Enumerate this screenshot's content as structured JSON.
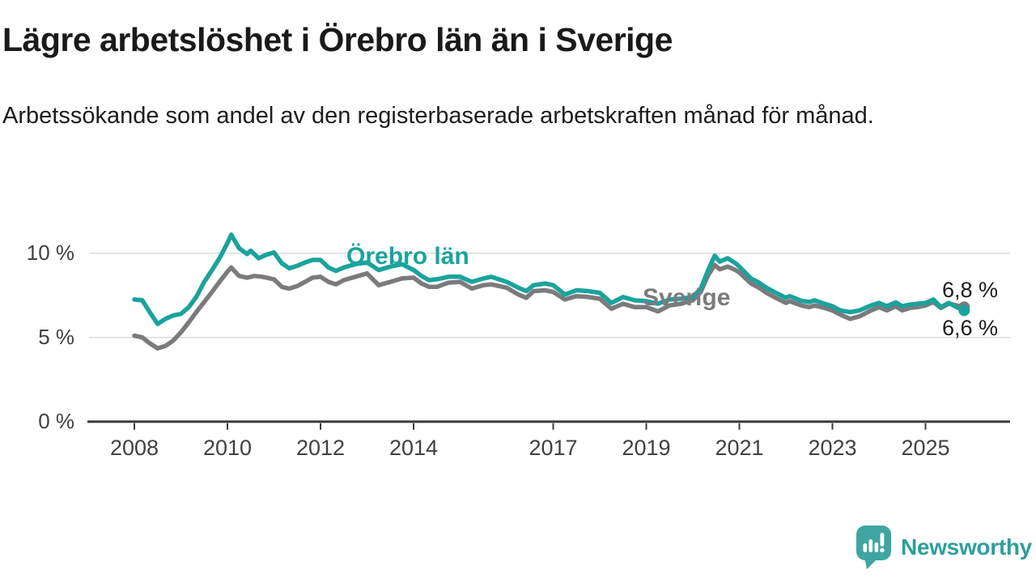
{
  "title": "Lägre arbetslöshet i Örebro län än i Sverige",
  "subtitle": "Arbetssökande som andel av den registerbaserade arbetskraften månad för månad.",
  "branding": {
    "logo_text": "Newsworthy",
    "logo_color": "#3FA5A0"
  },
  "chart_data": {
    "type": "line",
    "title": "Lägre arbetslöshet i Örebro län än i Sverige",
    "subtitle": "Arbetssökande som andel av den registerbaserade arbetskraften månad för månad.",
    "grid": "horizontal",
    "x_axis": {
      "ticks": [
        2008,
        2010,
        2012,
        2014,
        2017,
        2019,
        2021,
        2023,
        2025
      ],
      "range": [
        2008,
        2025.9
      ]
    },
    "y_axis": {
      "ticks": [
        0,
        5,
        10
      ],
      "tick_labels": [
        "0 %",
        "5 %",
        "10 %"
      ],
      "unit": "%",
      "range": [
        0,
        12
      ]
    },
    "colors": {
      "grid": "#dcdcdc",
      "axis": "#3c3c3c",
      "tick_text": "#404040"
    },
    "series": [
      {
        "name": "Sverige",
        "color": "#7b7b7e",
        "end_label": "6,8 %",
        "end_value": 6.8,
        "points": [
          [
            2008.0,
            5.1
          ],
          [
            2008.17,
            5.0
          ],
          [
            2008.33,
            4.65
          ],
          [
            2008.5,
            4.35
          ],
          [
            2008.67,
            4.5
          ],
          [
            2008.83,
            4.8
          ],
          [
            2009.0,
            5.3
          ],
          [
            2009.17,
            5.9
          ],
          [
            2009.33,
            6.5
          ],
          [
            2009.5,
            7.1
          ],
          [
            2009.67,
            7.7
          ],
          [
            2009.83,
            8.3
          ],
          [
            2010.0,
            8.9
          ],
          [
            2010.08,
            9.15
          ],
          [
            2010.25,
            8.65
          ],
          [
            2010.42,
            8.55
          ],
          [
            2010.58,
            8.65
          ],
          [
            2010.75,
            8.6
          ],
          [
            2010.92,
            8.5
          ],
          [
            2011.0,
            8.45
          ],
          [
            2011.17,
            8.0
          ],
          [
            2011.33,
            7.9
          ],
          [
            2011.5,
            8.05
          ],
          [
            2011.67,
            8.3
          ],
          [
            2011.83,
            8.55
          ],
          [
            2012.0,
            8.6
          ],
          [
            2012.17,
            8.3
          ],
          [
            2012.33,
            8.15
          ],
          [
            2012.5,
            8.4
          ],
          [
            2012.75,
            8.6
          ],
          [
            2013.0,
            8.8
          ],
          [
            2013.25,
            8.1
          ],
          [
            2013.5,
            8.3
          ],
          [
            2013.75,
            8.5
          ],
          [
            2014.0,
            8.55
          ],
          [
            2014.17,
            8.2
          ],
          [
            2014.33,
            8.0
          ],
          [
            2014.5,
            8.0
          ],
          [
            2014.75,
            8.25
          ],
          [
            2015.0,
            8.3
          ],
          [
            2015.25,
            7.9
          ],
          [
            2015.5,
            8.1
          ],
          [
            2015.67,
            8.15
          ],
          [
            2016.0,
            7.95
          ],
          [
            2016.25,
            7.55
          ],
          [
            2016.42,
            7.35
          ],
          [
            2016.58,
            7.75
          ],
          [
            2016.83,
            7.8
          ],
          [
            2017.0,
            7.7
          ],
          [
            2017.25,
            7.25
          ],
          [
            2017.5,
            7.45
          ],
          [
            2017.75,
            7.4
          ],
          [
            2018.0,
            7.3
          ],
          [
            2018.25,
            6.7
          ],
          [
            2018.5,
            7.0
          ],
          [
            2018.75,
            6.8
          ],
          [
            2019.0,
            6.8
          ],
          [
            2019.25,
            6.55
          ],
          [
            2019.5,
            6.9
          ],
          [
            2019.75,
            7.0
          ],
          [
            2020.0,
            7.2
          ],
          [
            2020.17,
            7.7
          ],
          [
            2020.33,
            8.7
          ],
          [
            2020.47,
            9.3
          ],
          [
            2020.58,
            9.05
          ],
          [
            2020.75,
            9.2
          ],
          [
            2020.92,
            9.0
          ],
          [
            2021.0,
            8.85
          ],
          [
            2021.25,
            8.2
          ],
          [
            2021.42,
            7.95
          ],
          [
            2021.58,
            7.65
          ],
          [
            2021.75,
            7.4
          ],
          [
            2022.0,
            7.05
          ],
          [
            2022.08,
            7.15
          ],
          [
            2022.33,
            6.9
          ],
          [
            2022.5,
            6.8
          ],
          [
            2022.62,
            6.9
          ],
          [
            2022.83,
            6.75
          ],
          [
            2023.0,
            6.6
          ],
          [
            2023.17,
            6.35
          ],
          [
            2023.38,
            6.1
          ],
          [
            2023.58,
            6.25
          ],
          [
            2023.83,
            6.6
          ],
          [
            2024.0,
            6.8
          ],
          [
            2024.17,
            6.6
          ],
          [
            2024.36,
            6.85
          ],
          [
            2024.5,
            6.6
          ],
          [
            2024.67,
            6.75
          ],
          [
            2024.83,
            6.8
          ],
          [
            2025.0,
            6.9
          ],
          [
            2025.17,
            7.1
          ],
          [
            2025.33,
            6.75
          ],
          [
            2025.5,
            7.0
          ],
          [
            2025.67,
            6.9
          ],
          [
            2025.83,
            6.8
          ]
        ]
      },
      {
        "name": "Örebro län",
        "color": "#1aa39c",
        "end_label": "6,6 %",
        "end_value": 6.6,
        "points": [
          [
            2008.0,
            7.25
          ],
          [
            2008.17,
            7.2
          ],
          [
            2008.33,
            6.5
          ],
          [
            2008.5,
            5.8
          ],
          [
            2008.67,
            6.1
          ],
          [
            2008.83,
            6.3
          ],
          [
            2009.0,
            6.4
          ],
          [
            2009.17,
            6.8
          ],
          [
            2009.33,
            7.4
          ],
          [
            2009.5,
            8.3
          ],
          [
            2009.67,
            9.0
          ],
          [
            2009.83,
            9.7
          ],
          [
            2010.0,
            10.6
          ],
          [
            2010.08,
            11.1
          ],
          [
            2010.25,
            10.3
          ],
          [
            2010.42,
            9.95
          ],
          [
            2010.5,
            10.15
          ],
          [
            2010.67,
            9.7
          ],
          [
            2010.83,
            9.9
          ],
          [
            2011.0,
            10.05
          ],
          [
            2011.17,
            9.4
          ],
          [
            2011.33,
            9.1
          ],
          [
            2011.5,
            9.25
          ],
          [
            2011.67,
            9.45
          ],
          [
            2011.83,
            9.6
          ],
          [
            2012.0,
            9.6
          ],
          [
            2012.17,
            9.15
          ],
          [
            2012.33,
            8.95
          ],
          [
            2012.5,
            9.15
          ],
          [
            2012.75,
            9.35
          ],
          [
            2013.0,
            9.45
          ],
          [
            2013.25,
            9.0
          ],
          [
            2013.5,
            9.2
          ],
          [
            2013.75,
            9.35
          ],
          [
            2014.0,
            9.0
          ],
          [
            2014.17,
            8.65
          ],
          [
            2014.33,
            8.4
          ],
          [
            2014.5,
            8.45
          ],
          [
            2014.75,
            8.6
          ],
          [
            2015.0,
            8.6
          ],
          [
            2015.25,
            8.3
          ],
          [
            2015.5,
            8.5
          ],
          [
            2015.67,
            8.6
          ],
          [
            2016.0,
            8.3
          ],
          [
            2016.25,
            7.95
          ],
          [
            2016.42,
            7.75
          ],
          [
            2016.58,
            8.1
          ],
          [
            2016.83,
            8.2
          ],
          [
            2017.0,
            8.1
          ],
          [
            2017.25,
            7.55
          ],
          [
            2017.5,
            7.8
          ],
          [
            2017.75,
            7.75
          ],
          [
            2018.0,
            7.65
          ],
          [
            2018.25,
            7.05
          ],
          [
            2018.5,
            7.4
          ],
          [
            2018.75,
            7.2
          ],
          [
            2019.0,
            7.15
          ],
          [
            2019.25,
            7.0
          ],
          [
            2019.5,
            7.25
          ],
          [
            2019.75,
            7.3
          ],
          [
            2020.0,
            7.4
          ],
          [
            2020.17,
            7.9
          ],
          [
            2020.33,
            9.0
          ],
          [
            2020.47,
            9.85
          ],
          [
            2020.58,
            9.5
          ],
          [
            2020.75,
            9.7
          ],
          [
            2020.92,
            9.4
          ],
          [
            2021.0,
            9.2
          ],
          [
            2021.25,
            8.5
          ],
          [
            2021.42,
            8.25
          ],
          [
            2021.58,
            7.95
          ],
          [
            2021.75,
            7.7
          ],
          [
            2022.0,
            7.35
          ],
          [
            2022.08,
            7.45
          ],
          [
            2022.33,
            7.18
          ],
          [
            2022.5,
            7.1
          ],
          [
            2022.62,
            7.2
          ],
          [
            2022.83,
            7.0
          ],
          [
            2023.0,
            6.85
          ],
          [
            2023.17,
            6.6
          ],
          [
            2023.38,
            6.5
          ],
          [
            2023.58,
            6.6
          ],
          [
            2023.83,
            6.9
          ],
          [
            2024.0,
            7.05
          ],
          [
            2024.17,
            6.85
          ],
          [
            2024.36,
            7.08
          ],
          [
            2024.5,
            6.85
          ],
          [
            2024.67,
            6.95
          ],
          [
            2024.83,
            7.0
          ],
          [
            2025.0,
            7.05
          ],
          [
            2025.17,
            7.25
          ],
          [
            2025.33,
            6.8
          ],
          [
            2025.5,
            7.05
          ],
          [
            2025.67,
            6.8
          ],
          [
            2025.83,
            6.6
          ]
        ]
      }
    ]
  }
}
